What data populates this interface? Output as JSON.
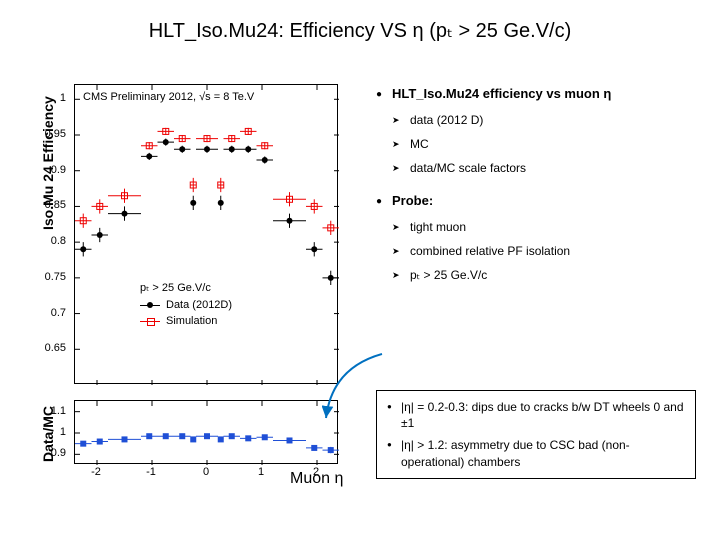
{
  "title": "HLT_Iso.Mu24: Efficiency VS η (pₜ > 25 Ge.V/c)",
  "prelim_label": "CMS Preliminary 2012,  √s = 8 Te.V",
  "ylabel_eff": "Iso.Mu 24 Efficiency",
  "ylabel_ratio": "Data/MC",
  "xlabel": "Muon η",
  "eff_chart": {
    "type": "scatter",
    "xlim": [
      -2.4,
      2.4
    ],
    "ylim": [
      0.6,
      1.02
    ],
    "yticks": [
      0.65,
      0.7,
      0.75,
      0.8,
      0.85,
      0.9,
      0.95,
      1.0
    ],
    "ytick_labels": [
      "0.65",
      "0.7",
      "0.75",
      "0.8",
      "0.85",
      "0.9",
      "0.95",
      "1"
    ],
    "xticks": [
      -2,
      -1,
      0,
      1,
      2
    ],
    "xtick_labels": [
      "-2",
      "-1",
      "0",
      "1",
      "2"
    ],
    "background_color": "#ffffff",
    "series": [
      {
        "name": "data",
        "marker": "filled-circle",
        "color": "#000000",
        "line_width": 1,
        "xerr_as_binwidth": true,
        "points": [
          {
            "x": -2.25,
            "y": 0.79,
            "xerr": 0.15,
            "yerr": 0.01
          },
          {
            "x": -1.95,
            "y": 0.81,
            "xerr": 0.15,
            "yerr": 0.01
          },
          {
            "x": -1.5,
            "y": 0.84,
            "xerr": 0.3,
            "yerr": 0.01
          },
          {
            "x": -1.05,
            "y": 0.92,
            "xerr": 0.15,
            "yerr": 0.005
          },
          {
            "x": -0.75,
            "y": 0.94,
            "xerr": 0.15,
            "yerr": 0.005
          },
          {
            "x": -0.45,
            "y": 0.93,
            "xerr": 0.15,
            "yerr": 0.005
          },
          {
            "x": -0.25,
            "y": 0.855,
            "xerr": 0.05,
            "yerr": 0.01
          },
          {
            "x": 0.0,
            "y": 0.93,
            "xerr": 0.2,
            "yerr": 0.005
          },
          {
            "x": 0.25,
            "y": 0.855,
            "xerr": 0.05,
            "yerr": 0.01
          },
          {
            "x": 0.45,
            "y": 0.93,
            "xerr": 0.15,
            "yerr": 0.005
          },
          {
            "x": 0.75,
            "y": 0.93,
            "xerr": 0.15,
            "yerr": 0.005
          },
          {
            "x": 1.05,
            "y": 0.915,
            "xerr": 0.15,
            "yerr": 0.005
          },
          {
            "x": 1.5,
            "y": 0.83,
            "xerr": 0.3,
            "yerr": 0.01
          },
          {
            "x": 1.95,
            "y": 0.79,
            "xerr": 0.15,
            "yerr": 0.01
          },
          {
            "x": 2.25,
            "y": 0.75,
            "xerr": 0.15,
            "yerr": 0.01
          }
        ]
      },
      {
        "name": "mc",
        "marker": "open-square",
        "color": "#ee0000",
        "line_width": 1,
        "xerr_as_binwidth": true,
        "points": [
          {
            "x": -2.25,
            "y": 0.83,
            "xerr": 0.15,
            "yerr": 0.01
          },
          {
            "x": -1.95,
            "y": 0.85,
            "xerr": 0.15,
            "yerr": 0.01
          },
          {
            "x": -1.5,
            "y": 0.865,
            "xerr": 0.3,
            "yerr": 0.01
          },
          {
            "x": -1.05,
            "y": 0.935,
            "xerr": 0.15,
            "yerr": 0.005
          },
          {
            "x": -0.75,
            "y": 0.955,
            "xerr": 0.15,
            "yerr": 0.005
          },
          {
            "x": -0.45,
            "y": 0.945,
            "xerr": 0.15,
            "yerr": 0.005
          },
          {
            "x": -0.25,
            "y": 0.88,
            "xerr": 0.05,
            "yerr": 0.01
          },
          {
            "x": 0.0,
            "y": 0.945,
            "xerr": 0.2,
            "yerr": 0.005
          },
          {
            "x": 0.25,
            "y": 0.88,
            "xerr": 0.05,
            "yerr": 0.01
          },
          {
            "x": 0.45,
            "y": 0.945,
            "xerr": 0.15,
            "yerr": 0.005
          },
          {
            "x": 0.75,
            "y": 0.955,
            "xerr": 0.15,
            "yerr": 0.005
          },
          {
            "x": 1.05,
            "y": 0.935,
            "xerr": 0.15,
            "yerr": 0.005
          },
          {
            "x": 1.5,
            "y": 0.86,
            "xerr": 0.3,
            "yerr": 0.01
          },
          {
            "x": 1.95,
            "y": 0.85,
            "xerr": 0.15,
            "yerr": 0.01
          },
          {
            "x": 2.25,
            "y": 0.82,
            "xerr": 0.15,
            "yerr": 0.01
          }
        ]
      }
    ]
  },
  "ratio_chart": {
    "type": "scatter",
    "xlim": [
      -2.4,
      2.4
    ],
    "ylim": [
      0.85,
      1.15
    ],
    "yticks": [
      0.9,
      1.0,
      1.1
    ],
    "ytick_labels": [
      "0.9",
      "1",
      "1.1"
    ],
    "color": "#1f4fd6",
    "marker": "filled-square",
    "marker_size": 6,
    "points": [
      {
        "x": -2.25,
        "y": 0.95,
        "xerr": 0.15,
        "yerr": 0.01
      },
      {
        "x": -1.95,
        "y": 0.96,
        "xerr": 0.15,
        "yerr": 0.01
      },
      {
        "x": -1.5,
        "y": 0.97,
        "xerr": 0.3,
        "yerr": 0.01
      },
      {
        "x": -1.05,
        "y": 0.985,
        "xerr": 0.15,
        "yerr": 0.005
      },
      {
        "x": -0.75,
        "y": 0.985,
        "xerr": 0.15,
        "yerr": 0.005
      },
      {
        "x": -0.45,
        "y": 0.985,
        "xerr": 0.15,
        "yerr": 0.005
      },
      {
        "x": -0.25,
        "y": 0.97,
        "xerr": 0.05,
        "yerr": 0.01
      },
      {
        "x": 0.0,
        "y": 0.985,
        "xerr": 0.2,
        "yerr": 0.005
      },
      {
        "x": 0.25,
        "y": 0.97,
        "xerr": 0.05,
        "yerr": 0.01
      },
      {
        "x": 0.45,
        "y": 0.985,
        "xerr": 0.15,
        "yerr": 0.005
      },
      {
        "x": 0.75,
        "y": 0.975,
        "xerr": 0.15,
        "yerr": 0.005
      },
      {
        "x": 1.05,
        "y": 0.98,
        "xerr": 0.15,
        "yerr": 0.005
      },
      {
        "x": 1.5,
        "y": 0.965,
        "xerr": 0.3,
        "yerr": 0.01
      },
      {
        "x": 1.95,
        "y": 0.93,
        "xerr": 0.15,
        "yerr": 0.01
      },
      {
        "x": 2.25,
        "y": 0.92,
        "xerr": 0.15,
        "yerr": 0.015
      }
    ]
  },
  "legend": {
    "cut": "pₜ > 25 Ge.V/c",
    "data": "Data (2012D)",
    "mc": "Simulation"
  },
  "bullets": {
    "heading1": "HLT_Iso.Mu24 efficiency vs muon η",
    "sub1a": "data  (2012 D)",
    "sub1b": "MC",
    "sub1c": "data/MC scale factors",
    "heading2": "Probe:",
    "sub2a": "tight muon",
    "sub2b": "combined relative PF isolation",
    "sub2c": "pₜ > 25 Ge.V/c"
  },
  "notes": {
    "n1": "|η| = 0.2-0.3:  dips due to cracks b/w DT wheels 0 and ±1",
    "n2": "|η| > 1.2:  asymmetry due to CSC bad (non-operational) chambers"
  },
  "arrow_color": "#0070c0"
}
